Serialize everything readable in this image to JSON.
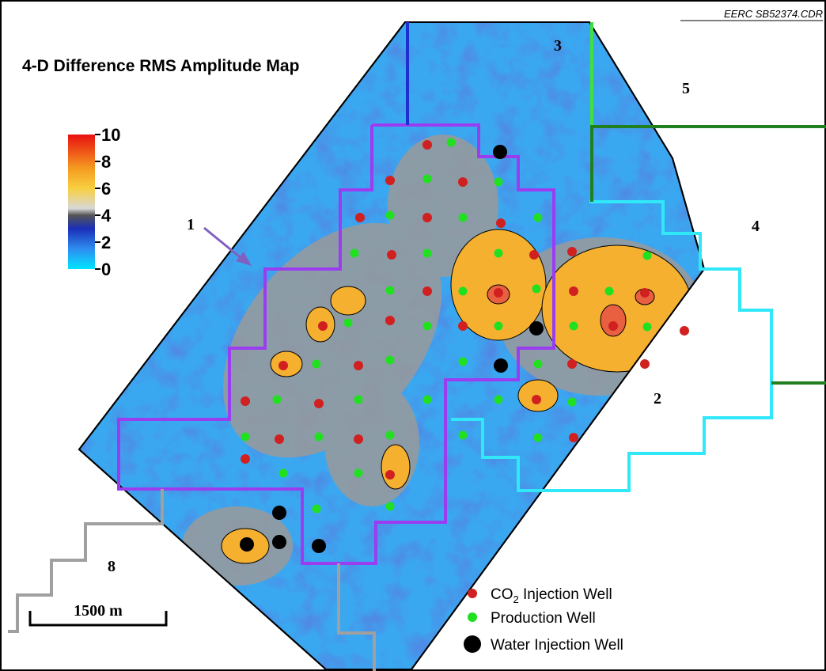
{
  "file_id": "EERC SB52374.CDR",
  "title": "4-D Difference RMS Amplitude Map",
  "colorbar": {
    "range": [
      0,
      10
    ],
    "ticks": [
      0,
      2,
      4,
      6,
      8,
      10
    ]
  },
  "zones": [
    {
      "label": "1"
    },
    {
      "label": "2"
    },
    {
      "label": "3"
    },
    {
      "label": "4"
    },
    {
      "label": "5"
    },
    {
      "label": "8"
    }
  ],
  "scale_bar": {
    "label": "1500 m"
  },
  "legend": [
    {
      "text": "CO",
      "subscript": "2",
      "suffix": " Injection Well"
    },
    {
      "text": "Production Well"
    },
    {
      "text": "Water Injection Well"
    }
  ]
}
